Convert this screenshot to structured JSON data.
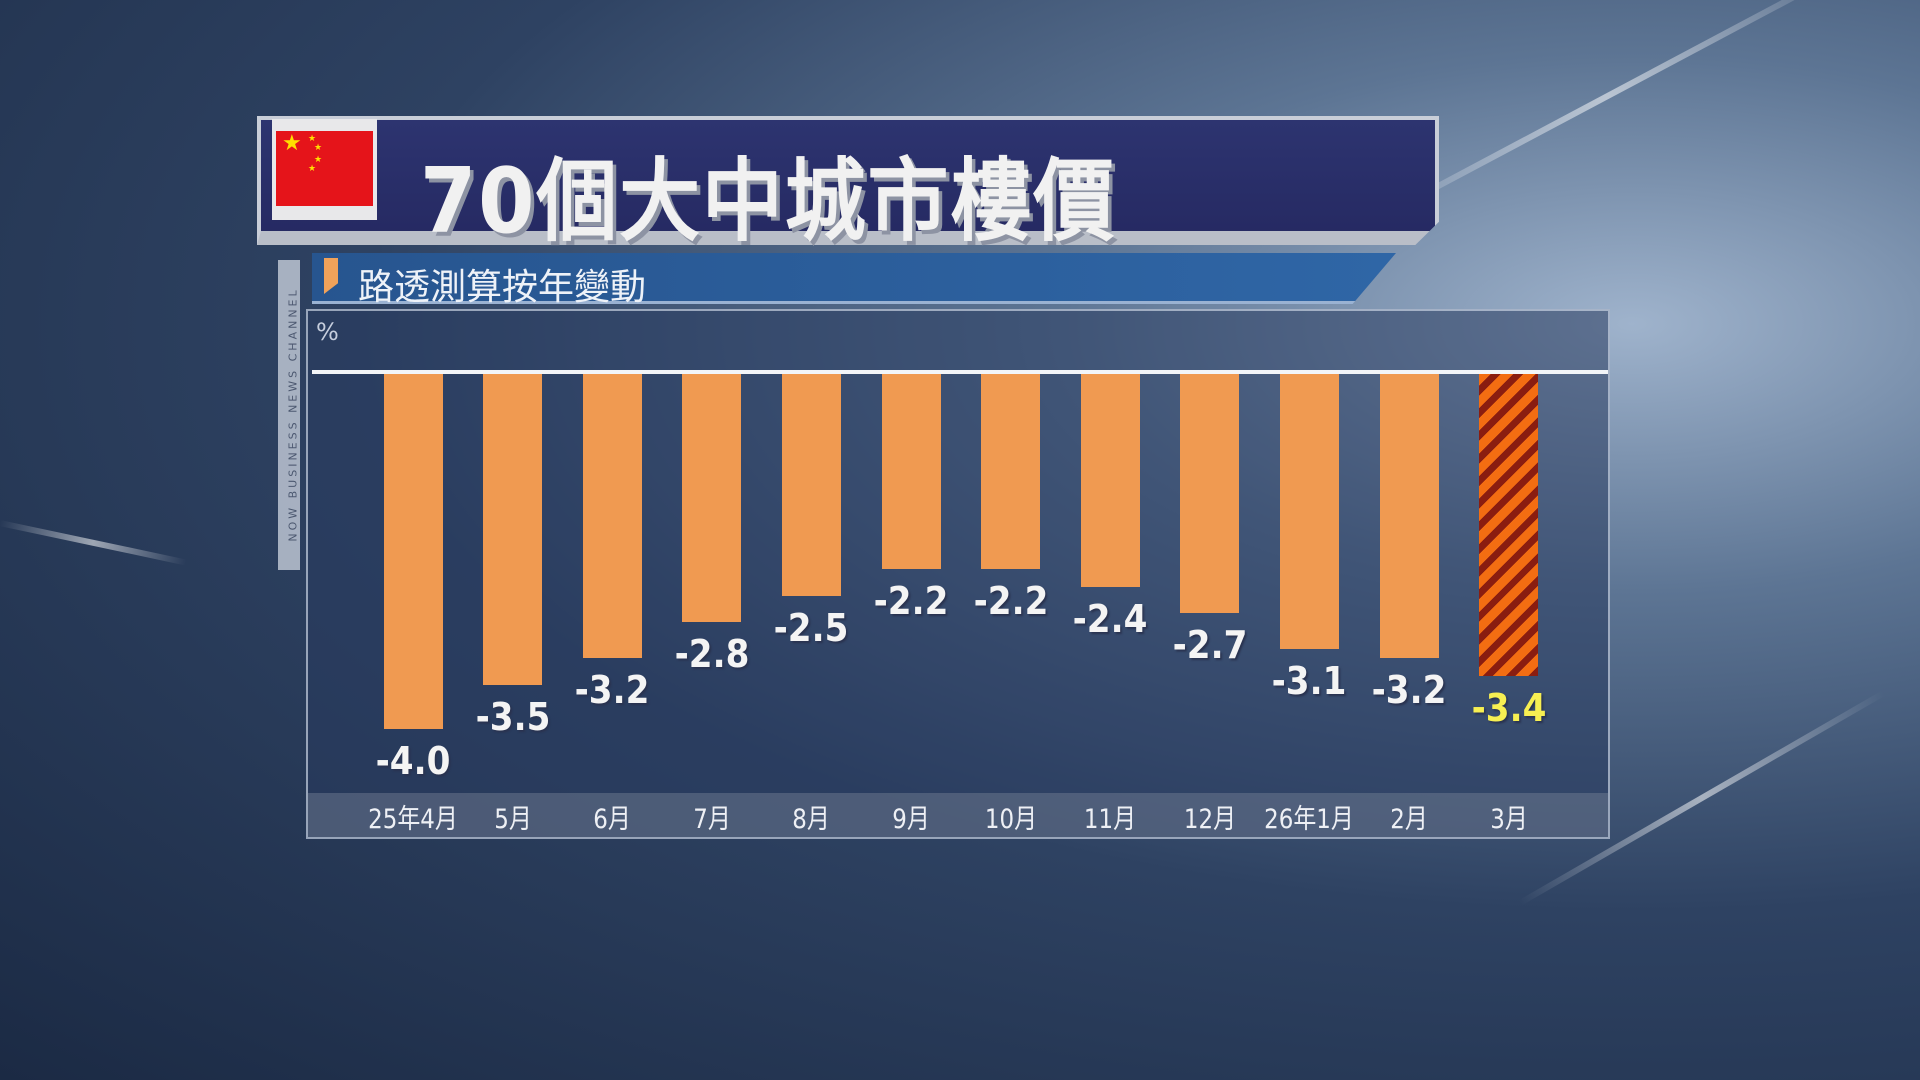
{
  "header": {
    "title": "70個大中城市樓價",
    "subtitle": "路透測算按年變動",
    "flag_icon": "china-flag-icon",
    "channel_watermark": "NOW BUSINESS NEWS CHANNEL"
  },
  "chart_data": {
    "type": "bar",
    "title": "70個大中城市樓價",
    "subtitle": "路透測算按年變動",
    "ylabel": "%",
    "categories": [
      "25年4月",
      "5月",
      "6月",
      "7月",
      "8月",
      "9月",
      "10月",
      "11月",
      "12月",
      "26年1月",
      "2月",
      "3月"
    ],
    "values": [
      -4.0,
      -3.5,
      -3.2,
      -2.8,
      -2.5,
      -2.2,
      -2.2,
      -2.4,
      -2.7,
      -3.1,
      -3.2,
      -3.4
    ],
    "labels": [
      "-4.0",
      "-3.5",
      "-3.2",
      "-2.8",
      "-2.5",
      "-2.2",
      "-2.2",
      "-2.4",
      "-2.7",
      "-3.1",
      "-3.2",
      "-3.4"
    ],
    "highlight_index": 11,
    "colors": {
      "bar": "#f09a51",
      "highlight_stripe_1": "#f36d12",
      "highlight_stripe_2": "#8a1d10",
      "highlight_label": "#f7ef52",
      "label": "#f4f4f4"
    },
    "ylim": [
      -4.0,
      0
    ],
    "grid": false
  }
}
